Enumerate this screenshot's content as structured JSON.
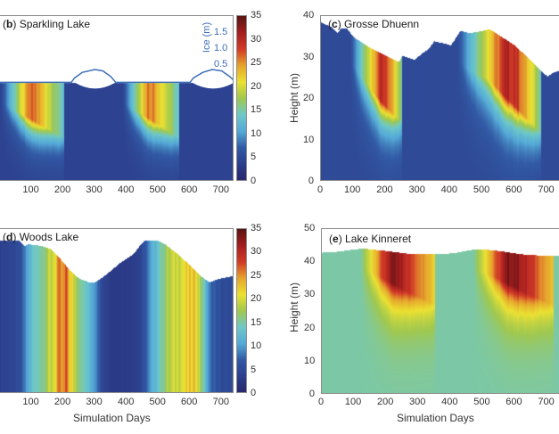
{
  "chart_data": [
    {
      "id": "b",
      "type": "heatmap",
      "title_letter": "b",
      "title_text": "Sparkling Lake",
      "xlabel": "",
      "ylabel": "",
      "xlim": [
        0,
        740
      ],
      "xticks": [
        100,
        200,
        300,
        400,
        500,
        600,
        700
      ],
      "colorbar": {
        "range": [
          0,
          35
        ],
        "ticks": [
          0,
          5,
          10,
          15,
          20,
          25,
          30,
          35
        ]
      },
      "secondary_axis": {
        "label": "Ice (m)",
        "ticks": [
          "0.5",
          "1.0",
          "1.5"
        ],
        "color": "#3d6fb6"
      },
      "surface_profile": [
        [
          0,
          1
        ],
        [
          740,
          1
        ]
      ],
      "ice_profile": [
        [
          0,
          0
        ],
        [
          225,
          0
        ],
        [
          235,
          0.15
        ],
        [
          260,
          0.35
        ],
        [
          300,
          0.45
        ],
        [
          325,
          0.4
        ],
        [
          350,
          0.2
        ],
        [
          365,
          0
        ],
        [
          600,
          0
        ],
        [
          610,
          0.15
        ],
        [
          640,
          0.35
        ],
        [
          670,
          0.45
        ],
        [
          700,
          0.4
        ],
        [
          725,
          0.2
        ],
        [
          740,
          0.05
        ]
      ],
      "warm_seasons": [
        {
          "start": 0,
          "end": 200,
          "peak": 27,
          "peak_day": 110,
          "depth_frac": 0.55
        },
        {
          "start": 385,
          "end": 565,
          "peak": 27,
          "peak_day": 480,
          "depth_frac": 0.55
        }
      ],
      "cold_value": 4
    },
    {
      "id": "c",
      "type": "heatmap",
      "title_letter": "c",
      "title_text": "Grosse Dhuenn",
      "xlabel": "",
      "ylabel": "Height (m)",
      "xlim": [
        0,
        740
      ],
      "ylim": [
        0,
        40
      ],
      "xticks": [
        0,
        100,
        200,
        300,
        400,
        500,
        600,
        700
      ],
      "yticks": [
        0,
        10,
        20,
        30,
        40
      ],
      "surface_profile": [
        [
          0,
          38.5
        ],
        [
          30,
          37.5
        ],
        [
          50,
          36
        ],
        [
          60,
          37
        ],
        [
          80,
          37
        ],
        [
          100,
          35
        ],
        [
          150,
          32.5
        ],
        [
          200,
          30.5
        ],
        [
          240,
          29
        ],
        [
          250,
          30.5
        ],
        [
          270,
          30
        ],
        [
          290,
          29.5
        ],
        [
          310,
          31
        ],
        [
          330,
          32
        ],
        [
          350,
          34
        ],
        [
          380,
          33.5
        ],
        [
          400,
          33
        ],
        [
          410,
          34
        ],
        [
          430,
          36.5
        ],
        [
          460,
          36
        ],
        [
          500,
          36.5
        ],
        [
          520,
          37
        ],
        [
          560,
          35
        ],
        [
          600,
          33
        ],
        [
          640,
          30
        ],
        [
          680,
          27
        ],
        [
          700,
          25.5
        ],
        [
          710,
          26
        ],
        [
          720,
          26.5
        ],
        [
          740,
          27
        ]
      ],
      "warm_seasons": [
        {
          "start": 90,
          "end": 250,
          "peak": 30,
          "peak_day": 200,
          "depth_frac": 0.5
        },
        {
          "start": 420,
          "end": 680,
          "peak": 31,
          "peak_day": 600,
          "depth_frac": 0.55
        }
      ],
      "cold_value": 5
    },
    {
      "id": "d",
      "type": "heatmap",
      "title_letter": "d",
      "title_text": "Woods Lake",
      "xlabel": "Simulation Days",
      "ylabel": "",
      "xlim": [
        0,
        740
      ],
      "xticks": [
        100,
        200,
        300,
        400,
        500,
        600,
        700
      ],
      "colorbar": {
        "range": [
          0,
          35
        ],
        "ticks": [
          0,
          5,
          10,
          15,
          20,
          25,
          30,
          35
        ]
      },
      "surface_profile": [
        [
          0,
          0.93
        ],
        [
          60,
          0.93
        ],
        [
          75,
          0.9
        ],
        [
          90,
          0.91
        ],
        [
          130,
          0.9
        ],
        [
          160,
          0.88
        ],
        [
          190,
          0.82
        ],
        [
          220,
          0.75
        ],
        [
          250,
          0.7
        ],
        [
          280,
          0.68
        ],
        [
          300,
          0.68
        ],
        [
          330,
          0.72
        ],
        [
          380,
          0.8
        ],
        [
          420,
          0.85
        ],
        [
          440,
          0.9
        ],
        [
          455,
          0.93
        ],
        [
          500,
          0.93
        ],
        [
          520,
          0.91
        ],
        [
          560,
          0.85
        ],
        [
          600,
          0.78
        ],
        [
          630,
          0.72
        ],
        [
          660,
          0.68
        ],
        [
          690,
          0.7
        ],
        [
          740,
          0.72
        ]
      ],
      "mixed_profile_days": [
        [
          0,
          4
        ],
        [
          60,
          5
        ],
        [
          80,
          9
        ],
        [
          100,
          13
        ],
        [
          130,
          16
        ],
        [
          160,
          19
        ],
        [
          175,
          22
        ],
        [
          185,
          25
        ],
        [
          200,
          24
        ],
        [
          210,
          27
        ],
        [
          220,
          22
        ],
        [
          240,
          18
        ],
        [
          260,
          15
        ],
        [
          280,
          12
        ],
        [
          300,
          10
        ],
        [
          320,
          5
        ],
        [
          350,
          3
        ],
        [
          400,
          3
        ],
        [
          440,
          4
        ],
        [
          460,
          7
        ],
        [
          480,
          11
        ],
        [
          500,
          14
        ],
        [
          530,
          18
        ],
        [
          560,
          20
        ],
        [
          600,
          22
        ],
        [
          620,
          22
        ],
        [
          640,
          15
        ],
        [
          660,
          8
        ],
        [
          700,
          5
        ],
        [
          740,
          5
        ]
      ]
    },
    {
      "id": "e",
      "type": "heatmap",
      "title_letter": "e",
      "title_text": "Lake Kinneret",
      "xlabel": "Simulation Days",
      "ylabel": "Height (m)",
      "xlim": [
        0,
        740
      ],
      "ylim": [
        0,
        50
      ],
      "xticks": [
        0,
        100,
        200,
        300,
        400,
        500,
        600,
        700
      ],
      "yticks": [
        0,
        10,
        20,
        30,
        40,
        50
      ],
      "surface_profile": [
        [
          0,
          43
        ],
        [
          50,
          43.3
        ],
        [
          100,
          44
        ],
        [
          130,
          44.2
        ],
        [
          200,
          43.5
        ],
        [
          280,
          42.5
        ],
        [
          350,
          42.5
        ],
        [
          370,
          42.5
        ],
        [
          420,
          43
        ],
        [
          460,
          43.8
        ],
        [
          500,
          44
        ],
        [
          550,
          43.5
        ],
        [
          620,
          42.5
        ],
        [
          700,
          42
        ],
        [
          740,
          42
        ]
      ],
      "warm_seasons": [
        {
          "start": 120,
          "end": 350,
          "peak": 33,
          "peak_day": 230,
          "depth_frac": 0.35
        },
        {
          "start": 470,
          "end": 720,
          "peak": 34,
          "peak_day": 600,
          "depth_frac": 0.35
        }
      ],
      "cold_value": 15
    }
  ]
}
